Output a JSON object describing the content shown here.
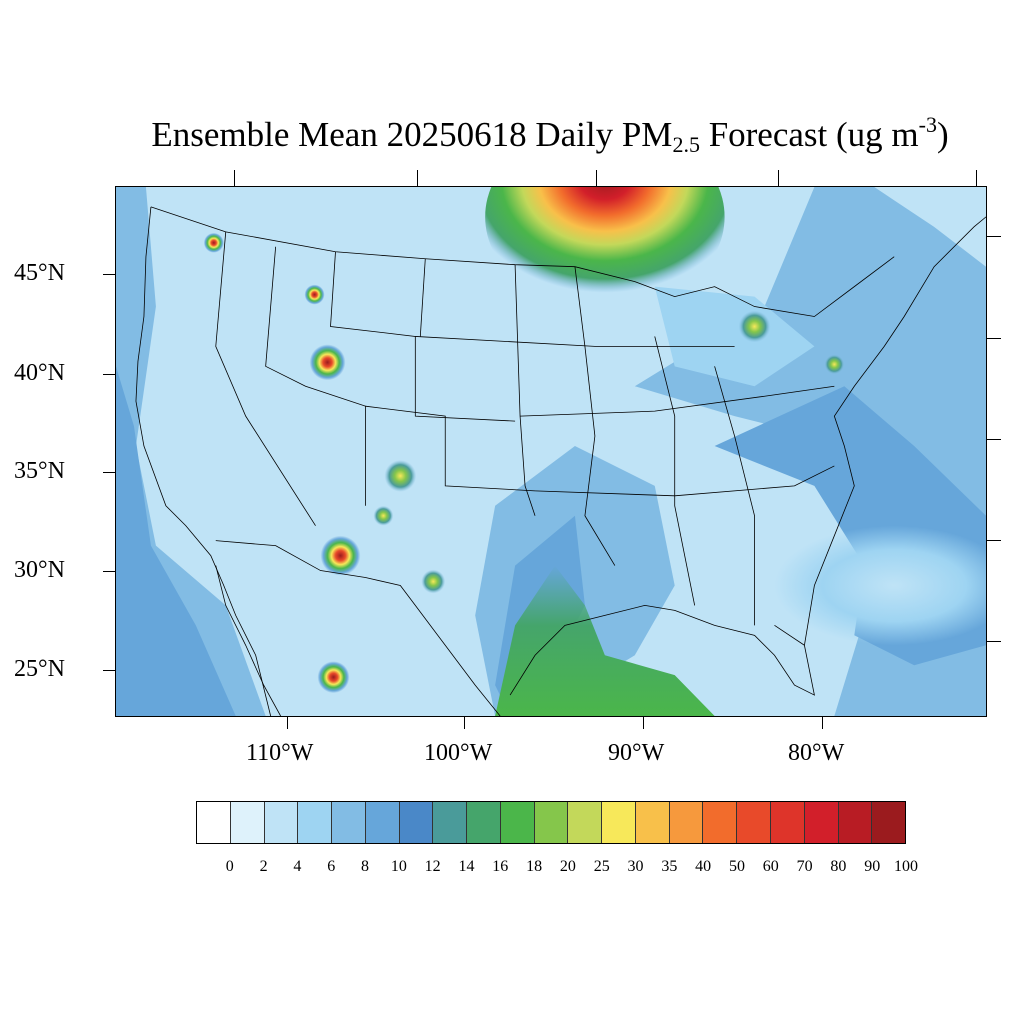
{
  "title": {
    "prefix": "Ensemble Mean 20250618 Daily PM",
    "subscript": "2.5",
    "middle": " Forecast (ug m",
    "superscript": "-3",
    "suffix": ")"
  },
  "map": {
    "projection": "Lambert conformal (CONUS)",
    "lat_labels": [
      "45°N",
      "40°N",
      "35°N",
      "30°N",
      "25°N"
    ],
    "lon_labels": [
      "110°W",
      "100°W",
      "90°W",
      "80°W"
    ],
    "background_level": "2-4"
  },
  "colorbar": {
    "labels": [
      "0",
      "2",
      "4",
      "6",
      "8",
      "10",
      "12",
      "14",
      "16",
      "18",
      "20",
      "25",
      "30",
      "35",
      "40",
      "50",
      "60",
      "70",
      "80",
      "90",
      "100"
    ],
    "colors": [
      "#ffffff",
      "#def2fb",
      "#bfe3f6",
      "#9ed4f2",
      "#82bce4",
      "#66a6da",
      "#4a88c8",
      "#4a9b9a",
      "#45a56b",
      "#4bb64a",
      "#85c64b",
      "#c3d85a",
      "#f7e85a",
      "#f8c04a",
      "#f6993d",
      "#f26c2c",
      "#e84a2a",
      "#de342a",
      "#d21f2a",
      "#b81c24",
      "#9b1b1e"
    ]
  },
  "hotspots": [
    {
      "name": "manitoba-ontario-plume",
      "level": "100"
    },
    {
      "name": "texas-gulf-plume",
      "level": "18-20"
    },
    {
      "name": "new-mexico-fire",
      "level": "90"
    },
    {
      "name": "colorado-fire",
      "level": "30"
    },
    {
      "name": "montana-fire",
      "level": "70"
    },
    {
      "name": "idaho-fire",
      "level": "40"
    },
    {
      "name": "washington-fire",
      "level": "35"
    },
    {
      "name": "mexico-fire",
      "level": "40"
    }
  ]
}
